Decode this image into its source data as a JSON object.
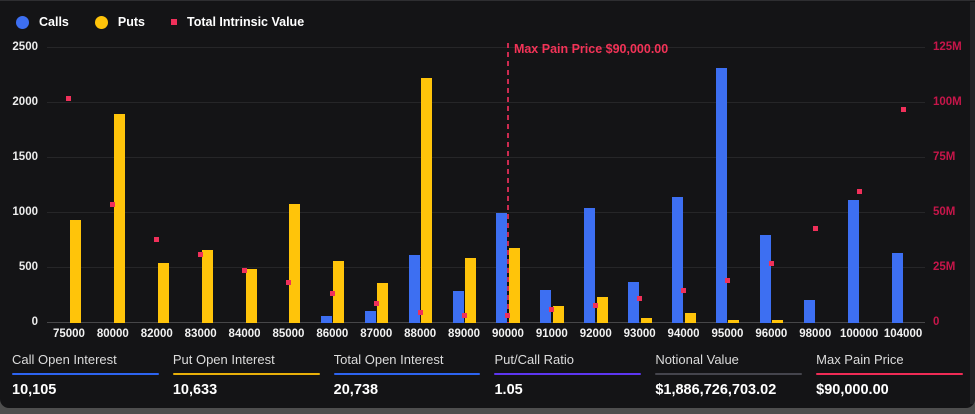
{
  "legend": [
    {
      "label": "Calls",
      "color": "#3d6ff2",
      "marker": "circle"
    },
    {
      "label": "Puts",
      "color": "#ffc40a",
      "marker": "circle"
    },
    {
      "label": "Total Intrinsic Value",
      "color": "#f0305a",
      "marker": "square"
    }
  ],
  "chart_data": {
    "type": "bar",
    "subtype": "grouped bars with scatter overlay on secondary axis",
    "categories": [
      "75000",
      "80000",
      "82000",
      "83000",
      "84000",
      "85000",
      "86000",
      "87000",
      "88000",
      "89000",
      "90000",
      "91000",
      "92000",
      "93000",
      "94000",
      "95000",
      "96000",
      "98000",
      "100000",
      "104000"
    ],
    "series": [
      {
        "name": "Calls",
        "type": "bar",
        "axis": "left",
        "color": "#3d6ff2",
        "values": [
          0,
          0,
          0,
          0,
          0,
          0,
          60,
          110,
          620,
          290,
          1000,
          300,
          1050,
          370,
          1150,
          2320,
          800,
          210,
          1120,
          640
        ]
      },
      {
        "name": "Puts",
        "type": "bar",
        "axis": "left",
        "color": "#ffc40a",
        "values": [
          940,
          1900,
          550,
          660,
          490,
          1080,
          560,
          360,
          2230,
          590,
          680,
          155,
          235,
          50,
          90,
          25,
          30,
          0,
          0,
          0
        ]
      },
      {
        "name": "Total Intrinsic Value",
        "type": "scatter",
        "axis": "right",
        "color": "#f0305a",
        "values_millions": [
          102,
          54,
          38,
          31,
          24,
          18.5,
          13.5,
          9,
          5,
          3.5,
          3.5,
          6,
          8,
          11,
          15,
          19.5,
          27,
          43,
          60,
          97
        ]
      }
    ],
    "left_axis": {
      "ticks": [
        "0",
        "500",
        "1000",
        "1500",
        "2000",
        "2500"
      ],
      "min": 0,
      "max": 2500
    },
    "right_axis": {
      "ticks": [
        "0",
        "25M",
        "50M",
        "75M",
        "100M",
        "125M"
      ],
      "min": 0,
      "max_millions": 125
    },
    "max_pain": {
      "category": "90000",
      "index": 10,
      "annotation": "Max Pain Price $90,000.00",
      "line_color": "#cc2b50"
    },
    "grid": "horizontal only",
    "legend_position": "top-left"
  },
  "footer": {
    "stats": [
      {
        "label": "Call Open Interest",
        "value": "10,105",
        "underline_color": "#2d64f0"
      },
      {
        "label": "Put Open Interest",
        "value": "10,633",
        "underline_color": "#e8b00a"
      },
      {
        "label": "Total Open Interest",
        "value": "20,738",
        "underline_color": "#2d64f0"
      },
      {
        "label": "Put/Call Ratio",
        "value": "1.05",
        "underline_color": "#5d36f0"
      },
      {
        "label": "Notional Value",
        "value": "$1,886,726,703.02",
        "underline_color": "#45454d"
      },
      {
        "label": "Max Pain Price",
        "value": "$90,000.00",
        "underline_color": "#ef2b55"
      }
    ]
  }
}
